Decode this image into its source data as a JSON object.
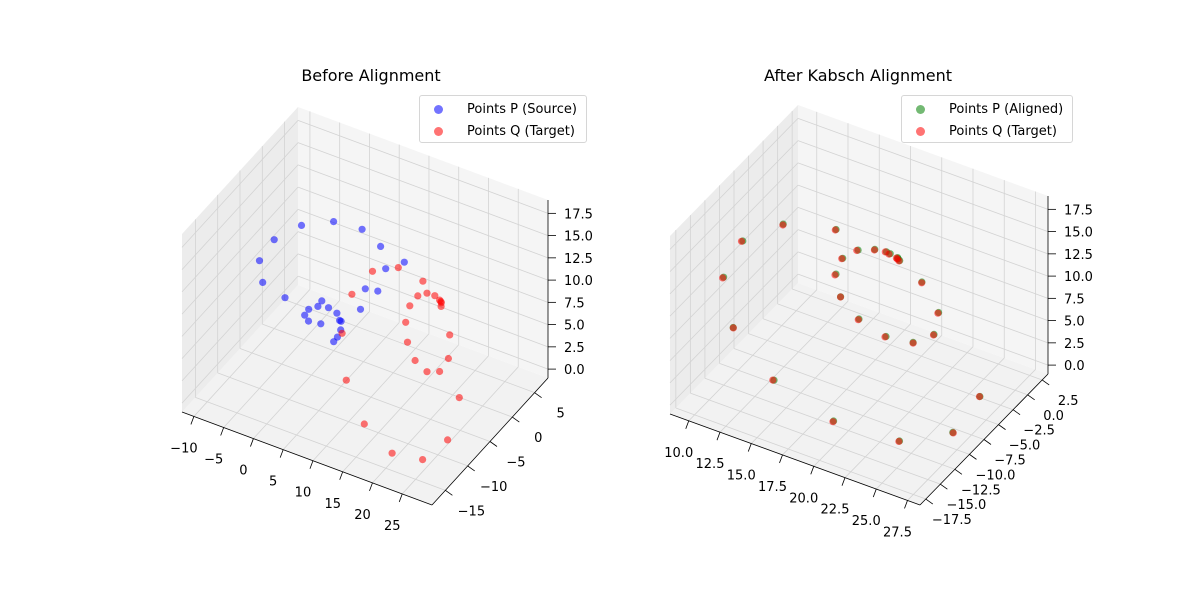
{
  "chart_data": [
    {
      "type": "scatter3d",
      "title": "Before Alignment",
      "xlim": [
        -12,
        30
      ],
      "ylim": [
        -18,
        8
      ],
      "zlim": [
        -1,
        19
      ],
      "xticks": [
        -10,
        -5,
        0,
        5,
        10,
        15,
        20,
        25
      ],
      "yticks": [
        -15,
        -10,
        -5,
        0,
        5
      ],
      "zticks": [
        "0.0",
        "2.5",
        "5.0",
        "7.5",
        "10.0",
        "12.5",
        "15.0",
        "17.5"
      ],
      "legend_placement": "top-right",
      "series": [
        {
          "name": "Points P (Source)",
          "color": "#0000ff",
          "x": [
            0,
            0.44,
            0.54,
            0.11,
            -0.83,
            -2.0,
            -2.97,
            -3.28,
            -2.61,
            -0.95,
            1.42,
            3.9,
            5.76,
            6.35,
            5.28,
            2.6,
            -1.16,
            -5.12,
            -8.2,
            -9.47,
            -8.39,
            -5.0,
            0.05,
            5.55,
            10.13,
            12.47
          ],
          "y": [
            0,
            0.24,
            0.84,
            1.5,
            1.82,
            1.5,
            0.42,
            -1.23,
            -3.03,
            -4.4,
            -4.79,
            -3.88,
            -1.68,
            1.4,
            4.6,
            7.04,
            7.91,
            6.79,
            3.71,
            -0.71,
            -5.44,
            -9.24,
            -11.0,
            -10.07,
            -6.44,
            -0.83
          ],
          "z": [
            0,
            0.5,
            1,
            1.5,
            2,
            2.5,
            3,
            3.5,
            4,
            4.5,
            5,
            5.5,
            6,
            6.5,
            7,
            7.5,
            8,
            8.5,
            9,
            9.5,
            10,
            10.5,
            11,
            11.5,
            12,
            12.5
          ]
        },
        {
          "name": "Points Q (Target)",
          "color": "#ff0000",
          "x": [
            18,
            18.44,
            18.54,
            18.11,
            17.17,
            16.0,
            15.03,
            14.72,
            15.39,
            17.05,
            19.42,
            21.9,
            23.76,
            24.35,
            23.28,
            20.6,
            16.84,
            12.88,
            9.8,
            8.53,
            9.61,
            13.0,
            18.05,
            23.55,
            28.13,
            30.47
          ],
          "y": [
            0,
            -0.5,
            -1,
            -1.5,
            -2,
            -2.5,
            -3,
            -3.5,
            -4,
            -4.5,
            -5,
            -5.5,
            -6,
            -6.5,
            -7,
            -7.5,
            -8,
            -8.5,
            -9,
            -9.5,
            -10,
            -10.5,
            -11,
            -11.5,
            -12,
            -12.5
          ],
          "z": [
            9,
            9.24,
            9.84,
            10.5,
            10.82,
            10.5,
            9.42,
            7.77,
            5.97,
            4.6,
            4.21,
            5.12,
            7.32,
            10.4,
            13.6,
            16.04,
            16.91,
            15.79,
            12.71,
            8.29,
            3.56,
            -0.24,
            -2.0,
            -1.07,
            2.56,
            8.17
          ]
        }
      ]
    },
    {
      "type": "scatter3d",
      "title": "After Kabsch Alignment",
      "xlim": [
        8.5,
        28.5
      ],
      "ylim": [
        -18.5,
        3.5
      ],
      "zlim": [
        -1,
        19
      ],
      "xticks": [
        "10.0",
        "12.5",
        "15.0",
        "17.5",
        "20.0",
        "22.5",
        "25.0",
        "27.5"
      ],
      "yticks": [
        "-17.5",
        "-15.0",
        "-12.5",
        "-10.0",
        "-7.5",
        "-5.0",
        "-2.5",
        "0.0",
        "2.5"
      ],
      "zticks": [
        "0.0",
        "2.5",
        "5.0",
        "7.5",
        "10.0",
        "12.5",
        "15.0",
        "17.5"
      ],
      "legend_placement": "top-right",
      "series": [
        {
          "name": "Points P (Aligned)",
          "color": "#008000",
          "x": [
            18.1,
            18.5,
            18.6,
            18.2,
            17.2,
            16.1,
            15.1,
            14.8,
            15.4,
            17.1,
            19.5,
            21.9,
            23.8,
            24.4,
            23.3,
            20.7,
            16.9,
            12.9,
            9.9,
            8.6,
            9.6,
            13.1,
            18.1,
            23.6,
            28.1,
            30.5
          ],
          "y": [
            0,
            -0.5,
            -1,
            -1.5,
            -2,
            -2.5,
            -3,
            -3.5,
            -4,
            -4.5,
            -5,
            -5.5,
            -6,
            -6.5,
            -7,
            -7.5,
            -8,
            -8.5,
            -9,
            -9.5,
            -10,
            -10.5,
            -11,
            -11.5,
            -12,
            -12.5
          ],
          "z": [
            9.1,
            9.3,
            9.9,
            10.6,
            10.9,
            10.6,
            9.5,
            7.9,
            6.0,
            4.7,
            4.3,
            5.2,
            7.4,
            10.5,
            13.7,
            16.1,
            17.0,
            15.9,
            12.8,
            8.4,
            3.6,
            -0.2,
            -1.9,
            -1.0,
            2.6,
            8.2
          ]
        },
        {
          "name": "Points Q (Target)",
          "color": "#ff0000",
          "x": [
            18,
            18.44,
            18.54,
            18.11,
            17.17,
            16.0,
            15.03,
            14.72,
            15.39,
            17.05,
            19.42,
            21.9,
            23.76,
            24.35,
            23.28,
            20.6,
            16.84,
            12.88,
            9.8,
            8.53,
            9.61,
            13.0,
            18.05,
            23.55,
            28.13,
            30.47
          ],
          "y": [
            0,
            -0.5,
            -1,
            -1.5,
            -2,
            -2.5,
            -3,
            -3.5,
            -4,
            -4.5,
            -5,
            -5.5,
            -6,
            -6.5,
            -7,
            -7.5,
            -8,
            -8.5,
            -9,
            -9.5,
            -10,
            -10.5,
            -11,
            -11.5,
            -12,
            -12.5
          ],
          "z": [
            9,
            9.24,
            9.84,
            10.5,
            10.82,
            10.5,
            9.42,
            7.77,
            5.97,
            4.6,
            4.21,
            5.12,
            7.32,
            10.4,
            13.6,
            16.04,
            16.91,
            15.79,
            12.71,
            8.29,
            3.56,
            -0.24,
            -2.0,
            -1.07,
            2.56,
            8.17
          ]
        }
      ]
    }
  ]
}
